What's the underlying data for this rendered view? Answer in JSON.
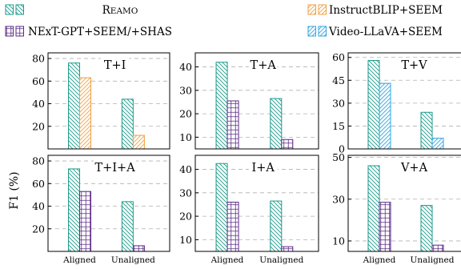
{
  "figure": {
    "ylabel": "F1 (%)",
    "xticks": [
      "Aligned",
      "Unaligned"
    ]
  },
  "legend": [
    {
      "label": "Reamo",
      "smallcaps": true,
      "color": "#1e9a8a",
      "hatch": "diag-back",
      "box": "double"
    },
    {
      "label": "InstructBLIP+SEEM",
      "color": "#f0a040",
      "hatch": "diag-fwd",
      "box": "double"
    },
    {
      "label": "NExT-GPT+SEEM/+SHAS",
      "color": "#5b2a86",
      "hatch": "grid",
      "box": "double"
    },
    {
      "label": "Video-LLaVA+SEEM",
      "color": "#2ea6e0",
      "hatch": "diag-fwd",
      "box": "double"
    }
  ],
  "chart_data": [
    {
      "type": "bar",
      "title": "T+I",
      "categories": [
        "Aligned",
        "Unaligned"
      ],
      "ylim": [
        0,
        85
      ],
      "yticks": [
        20,
        40,
        60,
        80
      ],
      "series": [
        {
          "name": "Reamo",
          "values": [
            76,
            44
          ]
        },
        {
          "name": "InstructBLIP+SEEM",
          "values": [
            63,
            12
          ]
        }
      ]
    },
    {
      "type": "bar",
      "title": "T+A",
      "categories": [
        "Aligned",
        "Unaligned"
      ],
      "ylim": [
        5,
        46
      ],
      "yticks": [
        10,
        20,
        30,
        40
      ],
      "series": [
        {
          "name": "Reamo",
          "values": [
            42,
            26.5
          ]
        },
        {
          "name": "NExT-GPT+SEEM/+SHAS",
          "values": [
            25.5,
            9
          ]
        }
      ]
    },
    {
      "type": "bar",
      "title": "T+V",
      "categories": [
        "Aligned",
        "Unaligned"
      ],
      "ylim": [
        0,
        63
      ],
      "yticks": [
        0,
        15,
        30,
        45,
        60
      ],
      "series": [
        {
          "name": "Reamo",
          "values": [
            58,
            24
          ]
        },
        {
          "name": "Video-LLaVA+SEEM",
          "values": [
            43,
            7
          ]
        }
      ]
    },
    {
      "type": "bar",
      "title": "T+I+A",
      "categories": [
        "Aligned",
        "Unaligned"
      ],
      "ylim": [
        0,
        85
      ],
      "yticks": [
        20,
        40,
        60,
        80
      ],
      "series": [
        {
          "name": "Reamo",
          "values": [
            73,
            44
          ]
        },
        {
          "name": "NExT-GPT+SEEM/+SHAS",
          "values": [
            53,
            5
          ]
        }
      ]
    },
    {
      "type": "bar",
      "title": "I+A",
      "categories": [
        "Aligned",
        "Unaligned"
      ],
      "ylim": [
        5,
        46
      ],
      "yticks": [
        10,
        20,
        30,
        40
      ],
      "series": [
        {
          "name": "Reamo",
          "values": [
            42.5,
            26.5
          ]
        },
        {
          "name": "NExT-GPT+SEEM/+SHAS",
          "values": [
            26,
            7
          ]
        }
      ]
    },
    {
      "type": "bar",
      "title": "V+A",
      "categories": [
        "Aligned",
        "Unaligned"
      ],
      "ylim": [
        5,
        51
      ],
      "yticks": [
        10,
        30,
        50
      ],
      "series": [
        {
          "name": "Reamo",
          "values": [
            46,
            27
          ]
        },
        {
          "name": "NExT-GPT+SEEM/+SHAS",
          "values": [
            28.5,
            8
          ]
        }
      ]
    }
  ]
}
